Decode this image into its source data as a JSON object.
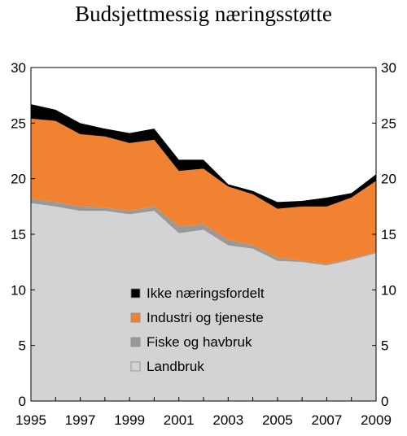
{
  "chart_data": {
    "type": "area",
    "title": "Budsjettmessig næringsstøtte",
    "xlabel": "",
    "ylabel": "",
    "stacked": true,
    "x": [
      1995,
      1996,
      1997,
      1998,
      1999,
      2000,
      2001,
      2002,
      2003,
      2004,
      2005,
      2006,
      2007,
      2008,
      2009
    ],
    "x_tick_labels": [
      "1995",
      "1997",
      "1999",
      "2001",
      "2003",
      "2005",
      "2007",
      "2009"
    ],
    "ylim": [
      0,
      30
    ],
    "y_ticks": [
      0,
      5,
      10,
      15,
      20,
      25,
      30
    ],
    "y_axis_both_sides": true,
    "grid": false,
    "legend_position": "center",
    "series": [
      {
        "name": "Landbruk",
        "color": "#d3d3d3",
        "values": [
          17.8,
          17.5,
          17.1,
          17.1,
          16.8,
          17.1,
          15.1,
          15.4,
          14.0,
          13.7,
          12.6,
          12.5,
          12.2,
          12.7,
          13.3
        ]
      },
      {
        "name": "Fiske og havbruk",
        "color": "#999999",
        "values": [
          0.4,
          0.4,
          0.4,
          0.3,
          0.3,
          0.4,
          0.6,
          0.5,
          0.5,
          0.3,
          0.3,
          0.1,
          0.1,
          0.1,
          0.1
        ]
      },
      {
        "name": "Industri og tjeneste",
        "color": "#f08232",
        "values": [
          7.2,
          7.3,
          6.5,
          6.4,
          6.1,
          6.0,
          5.0,
          5.0,
          4.8,
          4.6,
          4.4,
          4.9,
          5.2,
          5.5,
          6.4
        ]
      },
      {
        "name": "Ikke næringsfordelt",
        "color": "#000000",
        "values": [
          1.3,
          1.0,
          1.0,
          0.7,
          0.9,
          1.0,
          1.0,
          0.8,
          0.2,
          0.3,
          0.6,
          0.5,
          0.8,
          0.4,
          0.6
        ]
      }
    ],
    "legend_order": [
      "Ikke næringsfordelt",
      "Industri og tjeneste",
      "Fiske og havbruk",
      "Landbruk"
    ]
  }
}
